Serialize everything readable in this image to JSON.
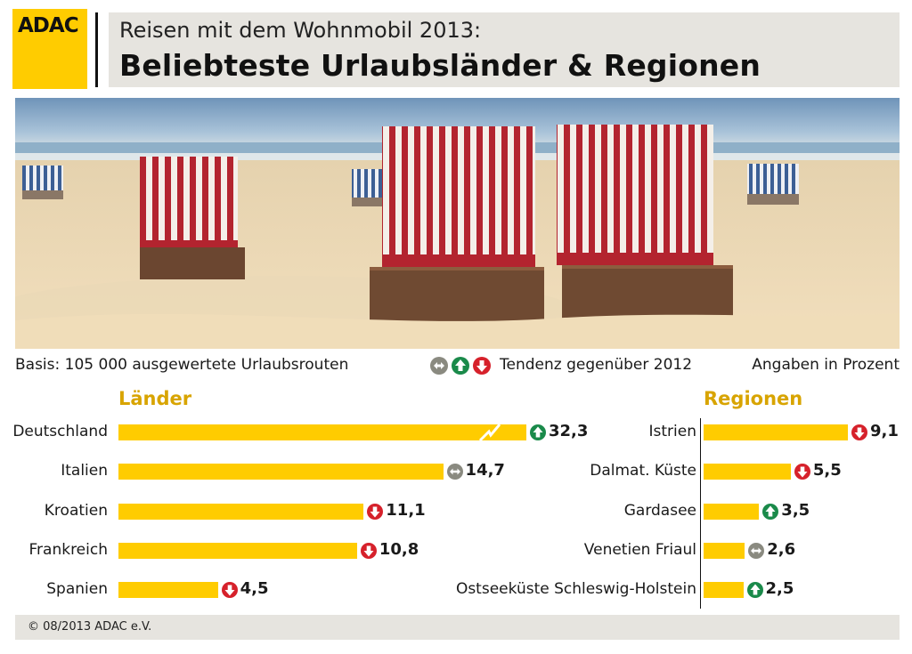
{
  "header": {
    "logo_text": "ADAC",
    "subtitle": "Reisen mit dem Wohnmobil 2013:",
    "title": "Beliebteste Urlaubsländer & Regionen"
  },
  "info": {
    "basis": "Basis: 105 000 ausgewertete Urlaubsrouten",
    "tendency": "Tendenz gegenüber 2012",
    "unit": "Angaben in Prozent"
  },
  "colors": {
    "bar": "#ffcc00",
    "accent_title": "#d8a400",
    "trend_up": "#1a8a4a",
    "trend_down": "#d6212b",
    "trend_same": "#8a8a80"
  },
  "footer": {
    "copyright": "© 08/2013 ADAC e.V."
  },
  "chart_data": [
    {
      "type": "bar",
      "orientation": "horizontal",
      "title": "Länder",
      "categories": [
        "Deutschland",
        "Italien",
        "Kroatien",
        "Frankreich",
        "Spanien"
      ],
      "values": [
        32.3,
        14.7,
        11.1,
        10.8,
        4.5
      ],
      "value_labels": [
        "32,3",
        "14,7",
        "11,1",
        "10,8",
        "4,5"
      ],
      "trend": [
        "up",
        "same",
        "down",
        "down",
        "down"
      ],
      "axis_break_on_first_bar": true
    },
    {
      "type": "bar",
      "orientation": "horizontal",
      "title": "Regionen",
      "categories": [
        "Istrien",
        "Dalmat. Küste",
        "Gardasee",
        "Venetien Friaul",
        "Ostseeküste Schleswig-Holstein"
      ],
      "values": [
        9.1,
        5.5,
        3.5,
        2.6,
        2.5
      ],
      "value_labels": [
        "9,1",
        "5,5",
        "3,5",
        "2,6",
        "2,5"
      ],
      "trend": [
        "down",
        "down",
        "up",
        "same",
        "up"
      ]
    }
  ]
}
